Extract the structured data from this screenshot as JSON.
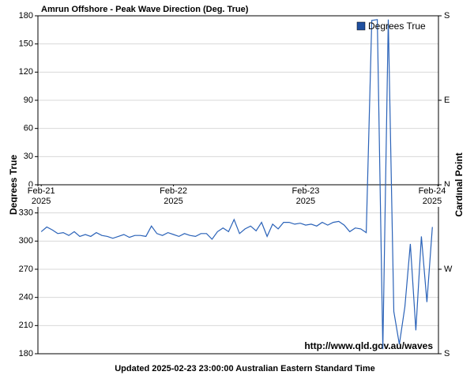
{
  "chart_data": {
    "type": "line",
    "title": "Amrun Offshore  - Peak Wave Direction (Deg. True)",
    "y_label": "Degrees True",
    "y2_label": "Cardinal Point",
    "footer": "Updated 2025-02-23 23:00:00 Australian Eastern Standard Time",
    "watermark": "http://www.qld.gov.au/waves",
    "legend": "upper right",
    "grid": true,
    "xlim": [
      -0.6,
      72.1
    ],
    "xticks": [
      {
        "value": 0,
        "label": "Feb-21\n2025"
      },
      {
        "value": 24,
        "label": "Feb-22\n2025"
      },
      {
        "value": 48,
        "label": "Feb-23\n2025"
      },
      {
        "value": 72,
        "label": "Feb-24\n2025"
      }
    ],
    "ylim_upper": [
      0,
      180
    ],
    "ylim_lower": [
      180,
      360
    ],
    "yticks_upper": [
      0,
      30,
      60,
      90,
      120,
      150,
      180
    ],
    "yticks_lower": [
      180,
      210,
      240,
      270,
      300,
      330
    ],
    "y2ticks_upper": [
      {
        "value": 0,
        "label": "N"
      },
      {
        "value": 90,
        "label": "E"
      },
      {
        "value": 180,
        "label": "S"
      }
    ],
    "y2ticks_lower": [
      {
        "value": 180,
        "label": "S"
      },
      {
        "value": 270,
        "label": "W"
      }
    ],
    "x": [
      0,
      1,
      2,
      3,
      4,
      5,
      6,
      7,
      8,
      9,
      10,
      11,
      12,
      13,
      14,
      15,
      16,
      17,
      18,
      19,
      20,
      21,
      22,
      23,
      24,
      25,
      26,
      27,
      28,
      29,
      30,
      31,
      32,
      33,
      34,
      35,
      36,
      37,
      38,
      39,
      40,
      41,
      42,
      43,
      44,
      45,
      46,
      47,
      48,
      49,
      50,
      51,
      52,
      53,
      54,
      55,
      56,
      57,
      58,
      59,
      60,
      61,
      62,
      63,
      64,
      65,
      66,
      67,
      68,
      69,
      70,
      71
    ],
    "series": [
      {
        "name": "Degrees True",
        "color": "#2a62b8",
        "legend_color": "#1f4f9f",
        "values": [
          310,
          315,
          312,
          308,
          309,
          306,
          310,
          305,
          307,
          305,
          309,
          306,
          305,
          303,
          305,
          307,
          304,
          306,
          306,
          305,
          316,
          308,
          306,
          309,
          307,
          305,
          308,
          306,
          305,
          308,
          308,
          302,
          310,
          314,
          310,
          323,
          308,
          313,
          316,
          311,
          320,
          305,
          318,
          313,
          320,
          320,
          318,
          319,
          317,
          318,
          316,
          320,
          317,
          320,
          321,
          317,
          310,
          314,
          313,
          309,
          175,
          176,
          185,
          176,
          225,
          190,
          230,
          297,
          205,
          305,
          235,
          315
        ]
      }
    ]
  }
}
